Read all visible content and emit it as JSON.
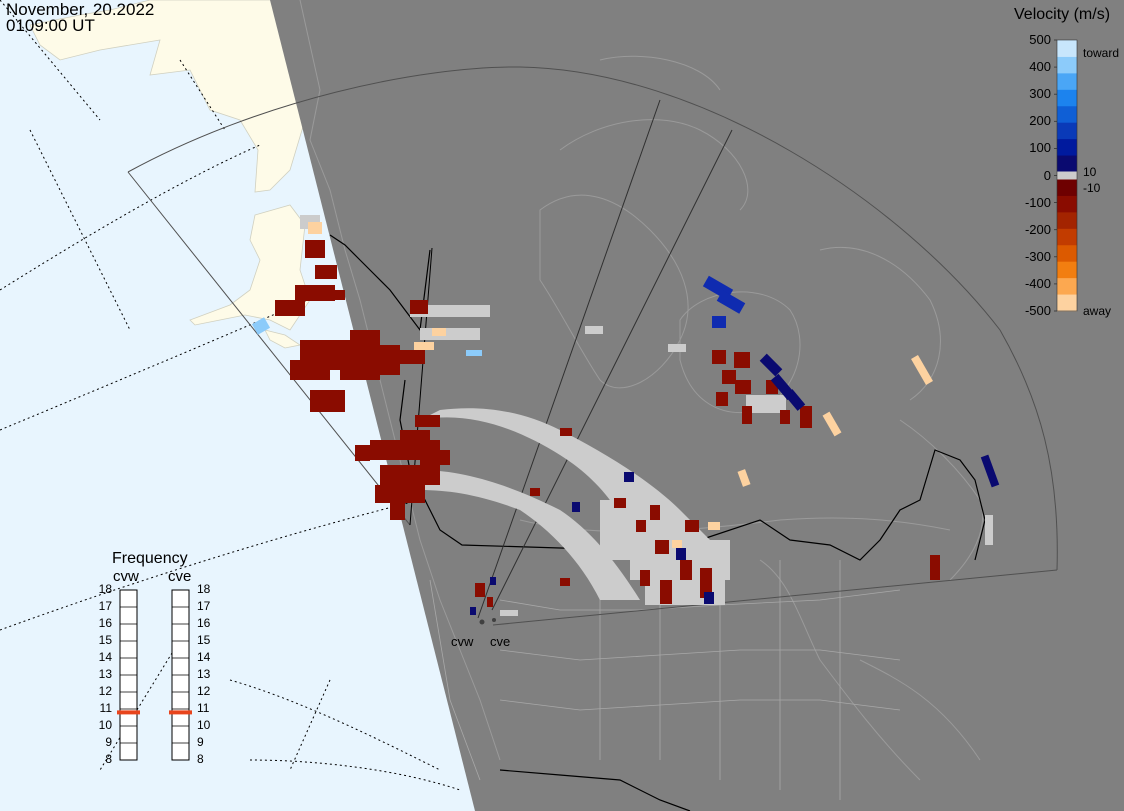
{
  "header": {
    "date": "November, 20.2022",
    "time": "0109:00 UT"
  },
  "velocity_legend": {
    "title": "Velocity (m/s)",
    "ticks": [
      "500",
      "400",
      "300",
      "200",
      "100",
      "0",
      "-100",
      "-200",
      "-300",
      "-400",
      "-500"
    ],
    "toward_label": "toward",
    "away_label": "away",
    "pos_threshold": "10",
    "neg_threshold": "-10",
    "colors_toward": [
      "#0a0a70",
      "#001a9e",
      "#0a3ab8",
      "#0f5fd6",
      "#1c83ee",
      "#4aa6f6",
      "#8ccbfa",
      "#c8e6fc"
    ],
    "colors_away": [
      "#6e0000",
      "#8a0c00",
      "#a32400",
      "#c23c00",
      "#dc5a00",
      "#f27e10",
      "#fca850",
      "#fdd2a0"
    ]
  },
  "frequency_panel": {
    "title": "Frequency",
    "radars": [
      {
        "name": "cvw",
        "frequency_mhz": 10.8
      },
      {
        "name": "cve",
        "frequency_mhz": 10.8
      }
    ],
    "ticks": [
      "18",
      "17",
      "16",
      "15",
      "14",
      "13",
      "12",
      "11",
      "10",
      "9",
      "8"
    ],
    "marker_color": "#e8441c"
  },
  "radars": {
    "site_labels": [
      "cvw",
      "cve"
    ]
  },
  "map_colors": {
    "ocean": "#e8f5fe",
    "land": "#fefbe8",
    "night": "#808080",
    "ground_scatter": "#cccccc"
  }
}
